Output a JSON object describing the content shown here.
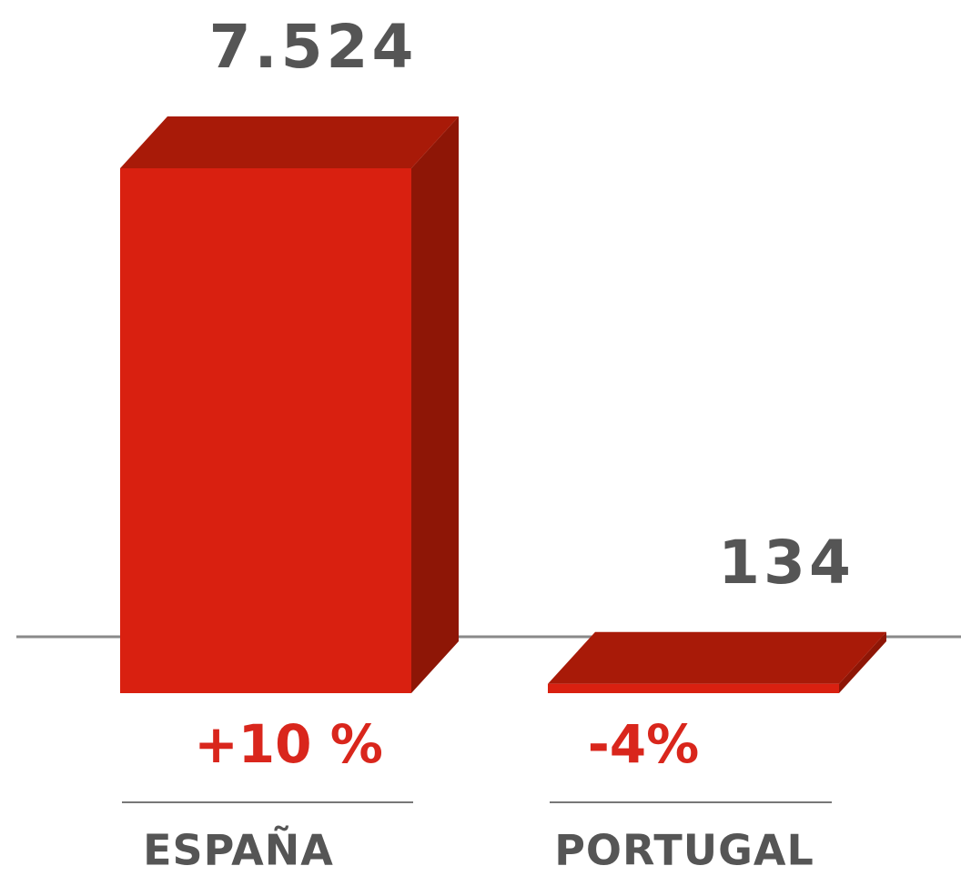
{
  "chart_data": {
    "type": "bar3d",
    "categories": [
      "ESPAÑA",
      "PORTUGAL"
    ],
    "values": [
      7524,
      134
    ],
    "value_labels": [
      "7.524",
      "134"
    ],
    "changes": [
      "+10 %",
      "-4%"
    ],
    "color": "#d92010"
  }
}
